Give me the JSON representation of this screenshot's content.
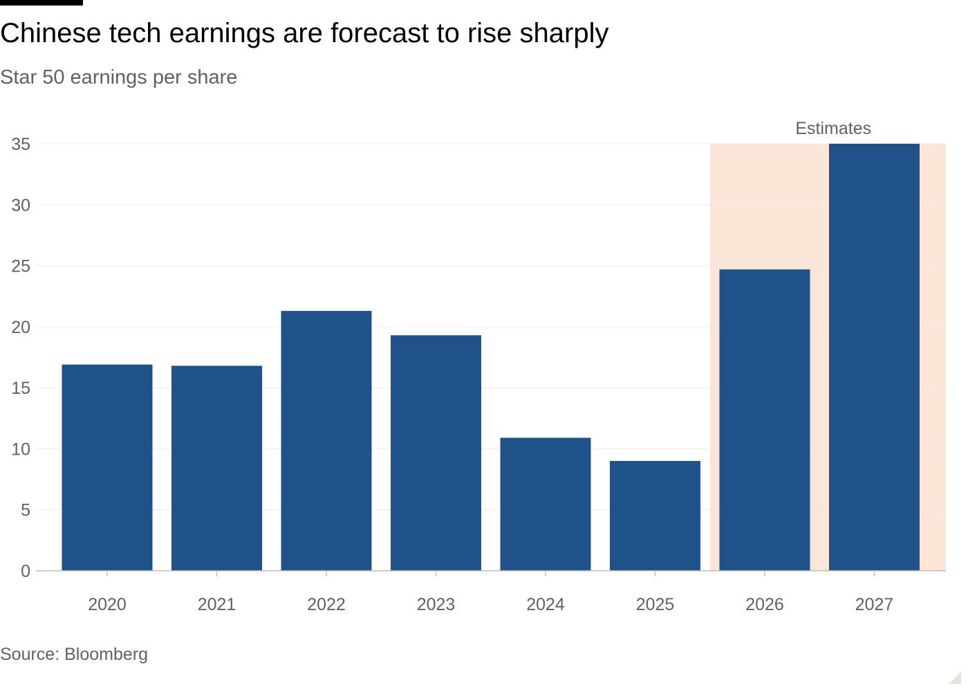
{
  "title": "Chinese tech earnings are forecast to rise sharply",
  "subtitle": "Star 50 earnings per share",
  "source": "Source: Bloomberg",
  "colors": {
    "bar": "#1f5289",
    "estimate_band": "#fbe5d6",
    "grid": "#efece9",
    "axis": "#c2bdb8",
    "text": "#66605c"
  },
  "chart_data": {
    "type": "bar",
    "categories": [
      "2020",
      "2021",
      "2022",
      "2023",
      "2024",
      "2025",
      "2026",
      "2027"
    ],
    "values": [
      16.9,
      16.8,
      21.3,
      19.3,
      10.9,
      9.0,
      24.7,
      35.0
    ],
    "ylim": [
      0,
      35
    ],
    "yticks": [
      0,
      5,
      10,
      15,
      20,
      25,
      30,
      35
    ],
    "grid": true,
    "estimate_categories": [
      "2026",
      "2027"
    ],
    "estimate_label": "Estimates"
  }
}
